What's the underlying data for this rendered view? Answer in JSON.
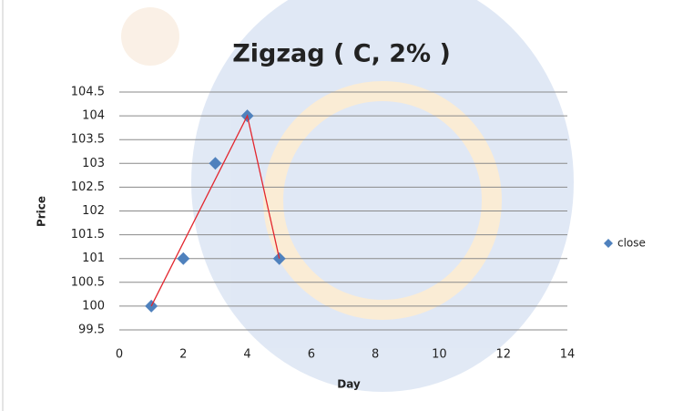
{
  "chart_data": {
    "type": "scatter",
    "title": "Zigzag ( C, 2% )",
    "x_label": "Day",
    "y_label": "Price",
    "x": [
      1,
      2,
      3,
      4,
      5
    ],
    "series": [
      {
        "name": "close",
        "color": "#4f81bd",
        "values": [
          100,
          101,
          103,
          104,
          101
        ],
        "marker": "diamond"
      },
      {
        "color": "#e3262e",
        "x": [
          1,
          4,
          5
        ],
        "values": [
          100,
          104,
          101
        ],
        "marker": "line"
      }
    ],
    "xlim": [
      0,
      14
    ],
    "xticks": [
      0,
      2,
      4,
      6,
      8,
      10,
      12,
      14
    ],
    "ylim": [
      99.5,
      104.5
    ],
    "yticks": [
      99.5,
      100,
      100.5,
      101,
      101.5,
      102,
      102.5,
      103,
      103.5,
      104,
      104.5
    ],
    "grid": true,
    "legend": "right"
  }
}
